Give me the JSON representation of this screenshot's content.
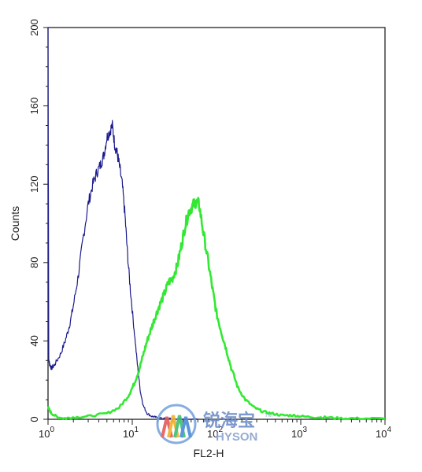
{
  "chart_data": {
    "type": "line",
    "xlabel": "FL2-H",
    "ylabel": "Counts",
    "xscale": "log",
    "xlim": [
      1,
      10000
    ],
    "ylim": [
      0,
      200
    ],
    "yticks": [
      0,
      40,
      80,
      120,
      160,
      200
    ],
    "ytick_labels": [
      "0",
      "40",
      "80",
      "120",
      "160",
      "200"
    ],
    "xticks": [
      1,
      10,
      100,
      1000,
      10000
    ],
    "xtick_labels": [
      {
        "base": "10",
        "exp": "0"
      },
      {
        "base": "10",
        "exp": "1"
      },
      {
        "base": "10",
        "exp": "2"
      },
      {
        "base": "10",
        "exp": "3"
      },
      {
        "base": "10",
        "exp": "4"
      }
    ],
    "grid": false,
    "series": [
      {
        "color": "#1a1a8c",
        "x": [
          1.0,
          1.02,
          1.05,
          1.1,
          1.2,
          1.4,
          1.6,
          1.8,
          2.0,
          2.3,
          2.6,
          3.0,
          3.4,
          3.8,
          4.2,
          4.6,
          5.0,
          5.4,
          5.8,
          6.2,
          6.6,
          7.0,
          7.6,
          8.2,
          8.8,
          9.5,
          10.5,
          11.5,
          12.5,
          13.5,
          15.0,
          17.0,
          19.0,
          22.0,
          25.0,
          30.0,
          40.0,
          60.0
        ],
        "values": [
          200,
          30,
          28,
          26,
          28,
          33,
          40,
          48,
          58,
          74,
          92,
          110,
          120,
          126,
          130,
          135,
          144,
          147,
          150,
          140,
          136,
          130,
          120,
          104,
          84,
          66,
          46,
          28,
          14,
          7,
          3,
          1.5,
          1,
          0.5,
          0.3,
          0.2,
          0.1,
          0
        ]
      },
      {
        "color": "#33e833",
        "x": [
          1.0,
          1.1,
          1.3,
          1.6,
          2.0,
          3.0,
          5.0,
          7.0,
          9.0,
          10.5,
          12.0,
          13.5,
          15.0,
          17.0,
          19.0,
          21.0,
          24.0,
          27.0,
          30.0,
          34.0,
          38.0,
          42.0,
          47.0,
          52.0,
          57.0,
          62.0,
          70.0,
          80.0,
          90.0,
          100.0,
          115.0,
          130.0,
          150.0,
          180.0,
          220.0,
          280.0,
          350.0,
          450.0,
          600.0,
          800.0,
          1000.0,
          1500.0,
          2000.0,
          3000.0,
          5000.0,
          10000.0
        ],
        "values": [
          6,
          3,
          1,
          0.5,
          1,
          1.5,
          3,
          6,
          12,
          18,
          25,
          33,
          40,
          47,
          53,
          58,
          64,
          70,
          72,
          78,
          88,
          98,
          106,
          109,
          111,
          110,
          95,
          80,
          66,
          54,
          44,
          36,
          26,
          16,
          10,
          6,
          4,
          3,
          2,
          2,
          1.5,
          1,
          1,
          0.5,
          0.5,
          0.3
        ]
      }
    ]
  },
  "watermark": {
    "cn": "锐海宝",
    "en": "HYSON",
    "tm": "TM"
  }
}
